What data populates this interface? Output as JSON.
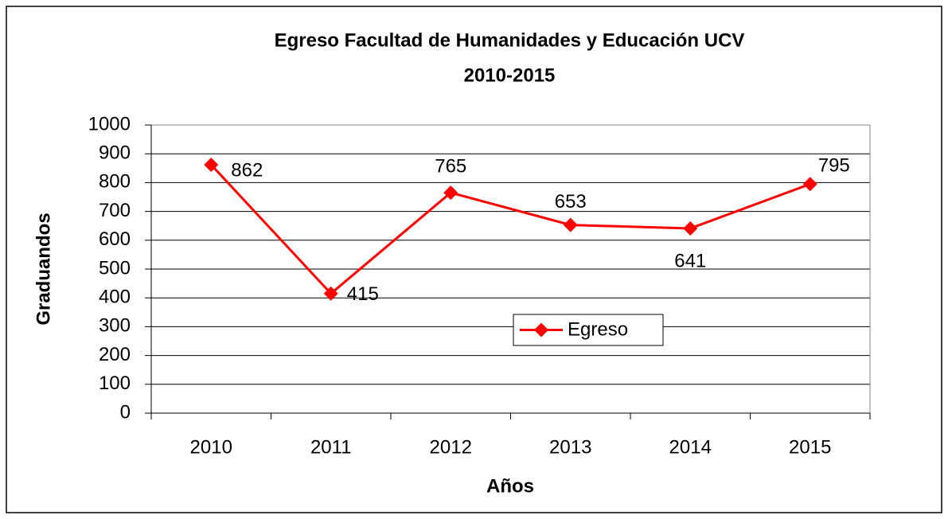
{
  "chart_data": {
    "type": "line",
    "title": [
      "Egreso Facultad de Humanidades y Educación UCV",
      "2010-2015"
    ],
    "x_label": "Años",
    "y_label": "Graduandos",
    "categories": [
      "2010",
      "2011",
      "2012",
      "2013",
      "2014",
      "2015"
    ],
    "series": [
      {
        "name": "Egreso",
        "color": "#ff0000",
        "values": [
          862,
          415,
          765,
          653,
          641,
          795
        ]
      }
    ],
    "ylim": [
      0,
      1000
    ],
    "yticks": [
      0,
      100,
      200,
      300,
      400,
      500,
      600,
      700,
      800,
      900,
      1000
    ],
    "grid": true,
    "legend": "center",
    "data_labels": true
  }
}
